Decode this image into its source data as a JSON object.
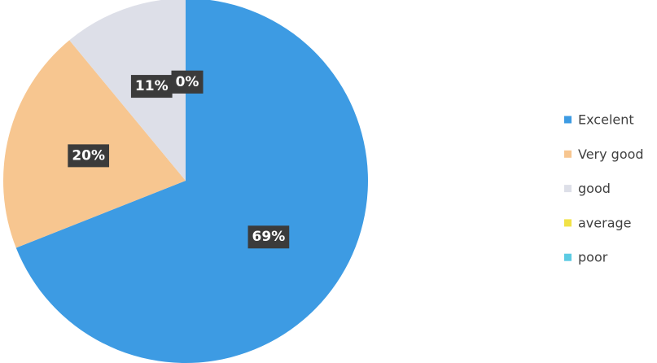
{
  "chart_data": {
    "type": "pie",
    "categories": [
      "Excelent",
      "Very good",
      "good",
      "average",
      "poor"
    ],
    "values": [
      69,
      20,
      11,
      0,
      0
    ],
    "value_labels": [
      "69%",
      "20%",
      "11%",
      "0%",
      "0%"
    ],
    "colors": [
      "#3d9be3",
      "#f7c690",
      "#dddfe8",
      "#f1e246",
      "#5ccbe3"
    ],
    "legend": "right"
  }
}
